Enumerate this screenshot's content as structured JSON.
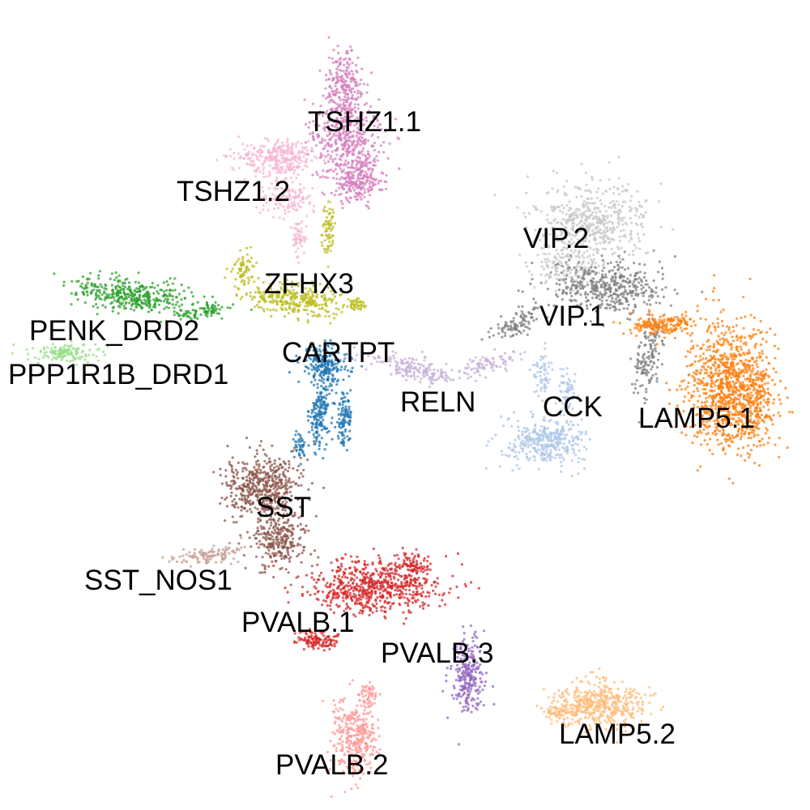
{
  "chart_data": {
    "type": "scatter",
    "title": "",
    "xlabel": "",
    "ylabel": "",
    "grid": false,
    "axes_visible": false,
    "legend": "none (labels placed on clusters)",
    "clusters": [
      {
        "label": "TSHZ1.1",
        "color": "#d67fbd"
      },
      {
        "label": "TSHZ1.2",
        "color": "#f6b6d2"
      },
      {
        "label": "ZFHX3",
        "color": "#bcbd22"
      },
      {
        "label": "PENK_DRD2",
        "color": "#2ca02c"
      },
      {
        "label": "PPP1R1B_DRD1",
        "color": "#98df8a"
      },
      {
        "label": "CARTPT",
        "color": "#1f77b4"
      },
      {
        "label": "RELN",
        "color": "#c5b0d5"
      },
      {
        "label": "VIP.2",
        "color": "#c7c7c7"
      },
      {
        "label": "VIP.1",
        "color": "#7f7f7f"
      },
      {
        "label": "CCK",
        "color": "#aec7e8"
      },
      {
        "label": "LAMP5.1",
        "color": "#ff7f0e"
      },
      {
        "label": "SST",
        "color": "#8c564b"
      },
      {
        "label": "SST_NOS1",
        "color": "#c49c94"
      },
      {
        "label": "PVALB.1",
        "color": "#d62728"
      },
      {
        "label": "PVALB.3",
        "color": "#9467bd"
      },
      {
        "label": "PVALB.2",
        "color": "#ff9896"
      },
      {
        "label": "LAMP5.2",
        "color": "#ffbb78"
      }
    ]
  }
}
